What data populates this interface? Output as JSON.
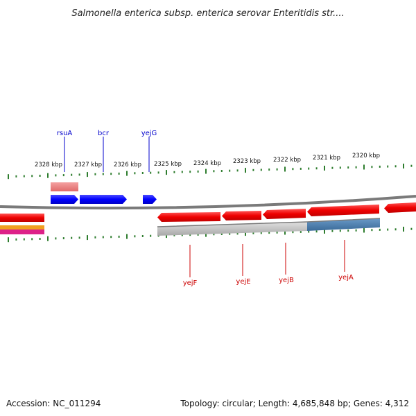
{
  "header": {
    "title": "Salmonella enterica subsp. enterica serovar Enteritidis str...."
  },
  "ruler": {
    "tick_color": "#2e7d2e",
    "labels": [
      "2328 kbp",
      "2327 kbp",
      "2326 kbp",
      "2325 kbp",
      "2324 kbp",
      "2323 kbp",
      "2322 kbp",
      "2321 kbp",
      "2320 kbp"
    ]
  },
  "genes_top": [
    {
      "name": "rsuA",
      "color": "#0000cc"
    },
    {
      "name": "bcr",
      "color": "#0000cc"
    },
    {
      "name": "yejG",
      "color": "#0000cc"
    }
  ],
  "genes_bottom": [
    {
      "name": "yejF",
      "color": "#cc0000"
    },
    {
      "name": "yejE",
      "color": "#cc0000"
    },
    {
      "name": "yejB",
      "color": "#cc0000"
    },
    {
      "name": "yejA",
      "color": "#cc0000"
    }
  ],
  "colors": {
    "forward_gene": "#0000ff",
    "reverse_gene": "#ee0000",
    "backbone": "#7a7a7a",
    "operon_gray": "#b8b8b8",
    "operon_blue": "#4a7aa8"
  },
  "footer": {
    "accession": "Accession: NC_011294",
    "summary": "Topology: circular; Length: 4,685,848 bp; Genes: 4,312"
  }
}
